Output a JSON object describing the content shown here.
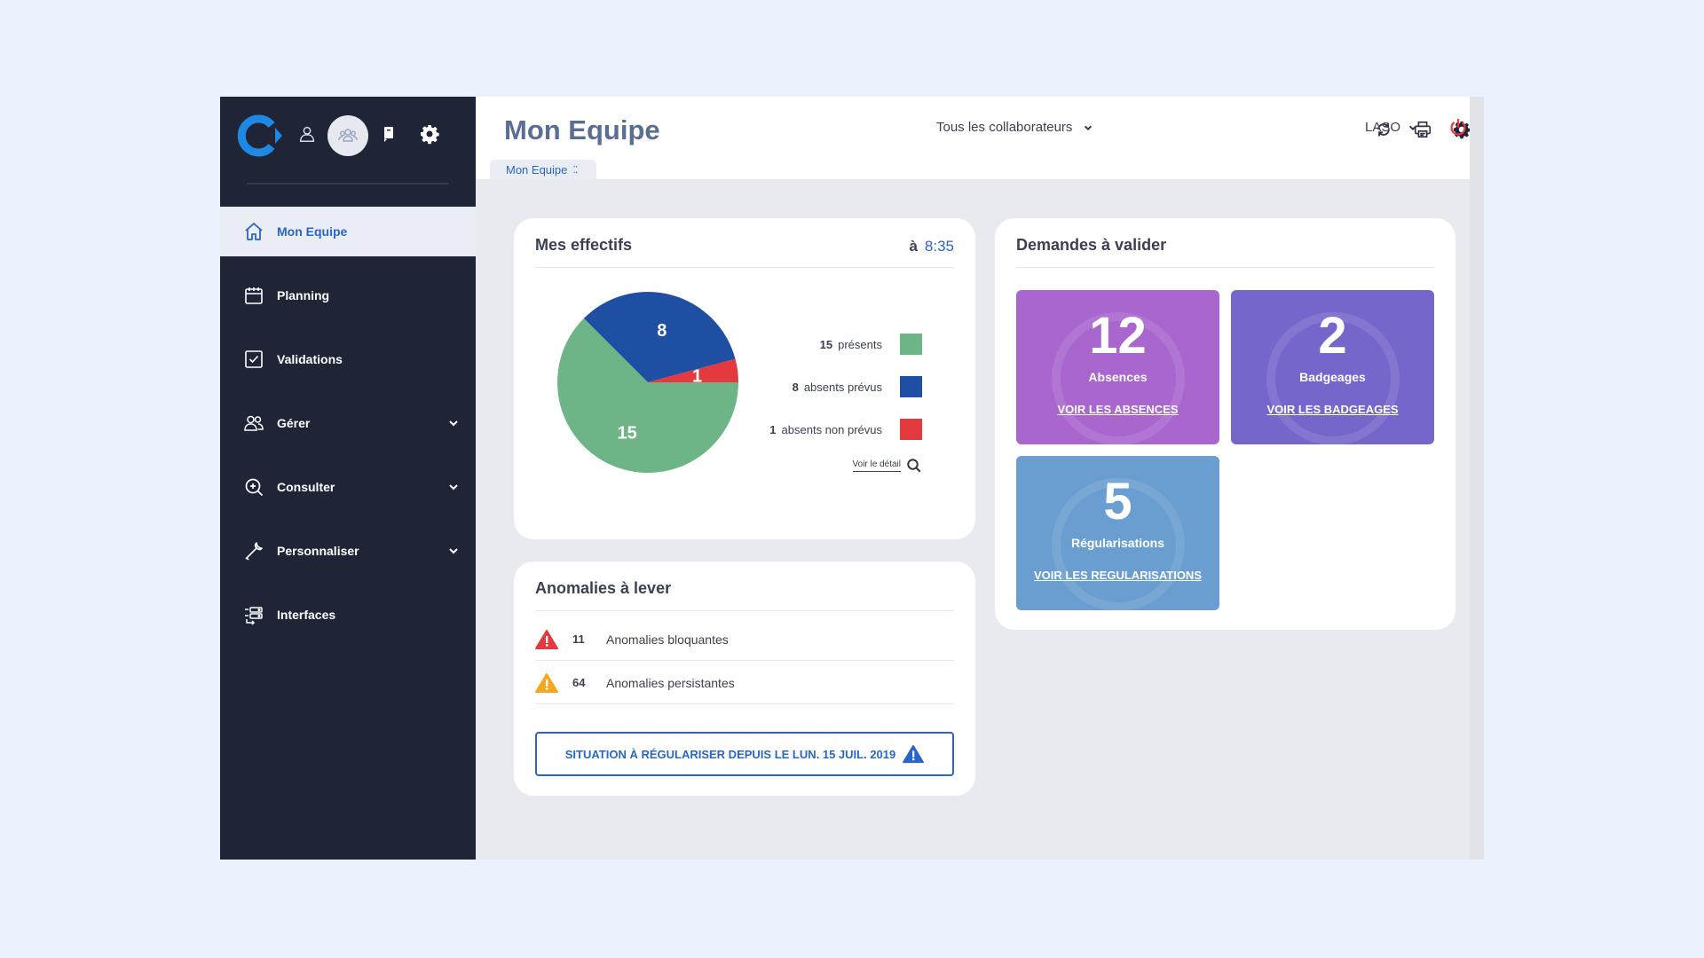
{
  "sidebar": {
    "active_item": "Mon Equipe",
    "items": [
      {
        "label": "Planning"
      },
      {
        "label": "Validations"
      },
      {
        "label": "Gérer"
      },
      {
        "label": "Consulter"
      },
      {
        "label": "Personnaliser"
      },
      {
        "label": "Interfaces"
      }
    ]
  },
  "header": {
    "title": "Mon Equipe",
    "tab_label": "Mon Equipe",
    "collaborator_filter": "Tous les collaborateurs",
    "user": "LASO"
  },
  "effectifs": {
    "title": "Mes effectifs",
    "time_prefix": "à",
    "time": "8:35",
    "detail_link": "Voir le détail",
    "legend": [
      {
        "count": "15",
        "label": "présents",
        "color": "#6db487"
      },
      {
        "count": "8",
        "label": "absents prévus",
        "color": "#1f4fa3"
      },
      {
        "count": "1",
        "label": "absents non prévus",
        "color": "#e3393f"
      }
    ]
  },
  "chart_data": {
    "type": "pie",
    "categories": [
      "présents",
      "absents prévus",
      "absents non prévus"
    ],
    "values": [
      15,
      8,
      1
    ],
    "colors": [
      "#6db487",
      "#1f4fa3",
      "#e3393f"
    ]
  },
  "anomalies": {
    "title": "Anomalies à lever",
    "rows": [
      {
        "count": "11",
        "label": "Anomalies bloquantes",
        "severity_color": "#e3393f"
      },
      {
        "count": "64",
        "label": "Anomalies persistantes",
        "severity_color": "#f3a81d"
      }
    ],
    "situation_button": "SITUATION À RÉGULARISER DEPUIS LE LUN. 15 JUIL. 2019"
  },
  "demandes": {
    "title": "Demandes à valider",
    "tiles": [
      {
        "count": "12",
        "label": "Absences",
        "link": "VOIR LES ABSENCES",
        "color": "#a966cf"
      },
      {
        "count": "2",
        "label": "Badgeages",
        "link": "VOIR LES BADGEAGES",
        "color": "#7566cb"
      },
      {
        "count": "5",
        "label": "Régularisations",
        "link": "VOIR LES REGULARISATIONS",
        "color": "#6a9ed0"
      }
    ]
  }
}
